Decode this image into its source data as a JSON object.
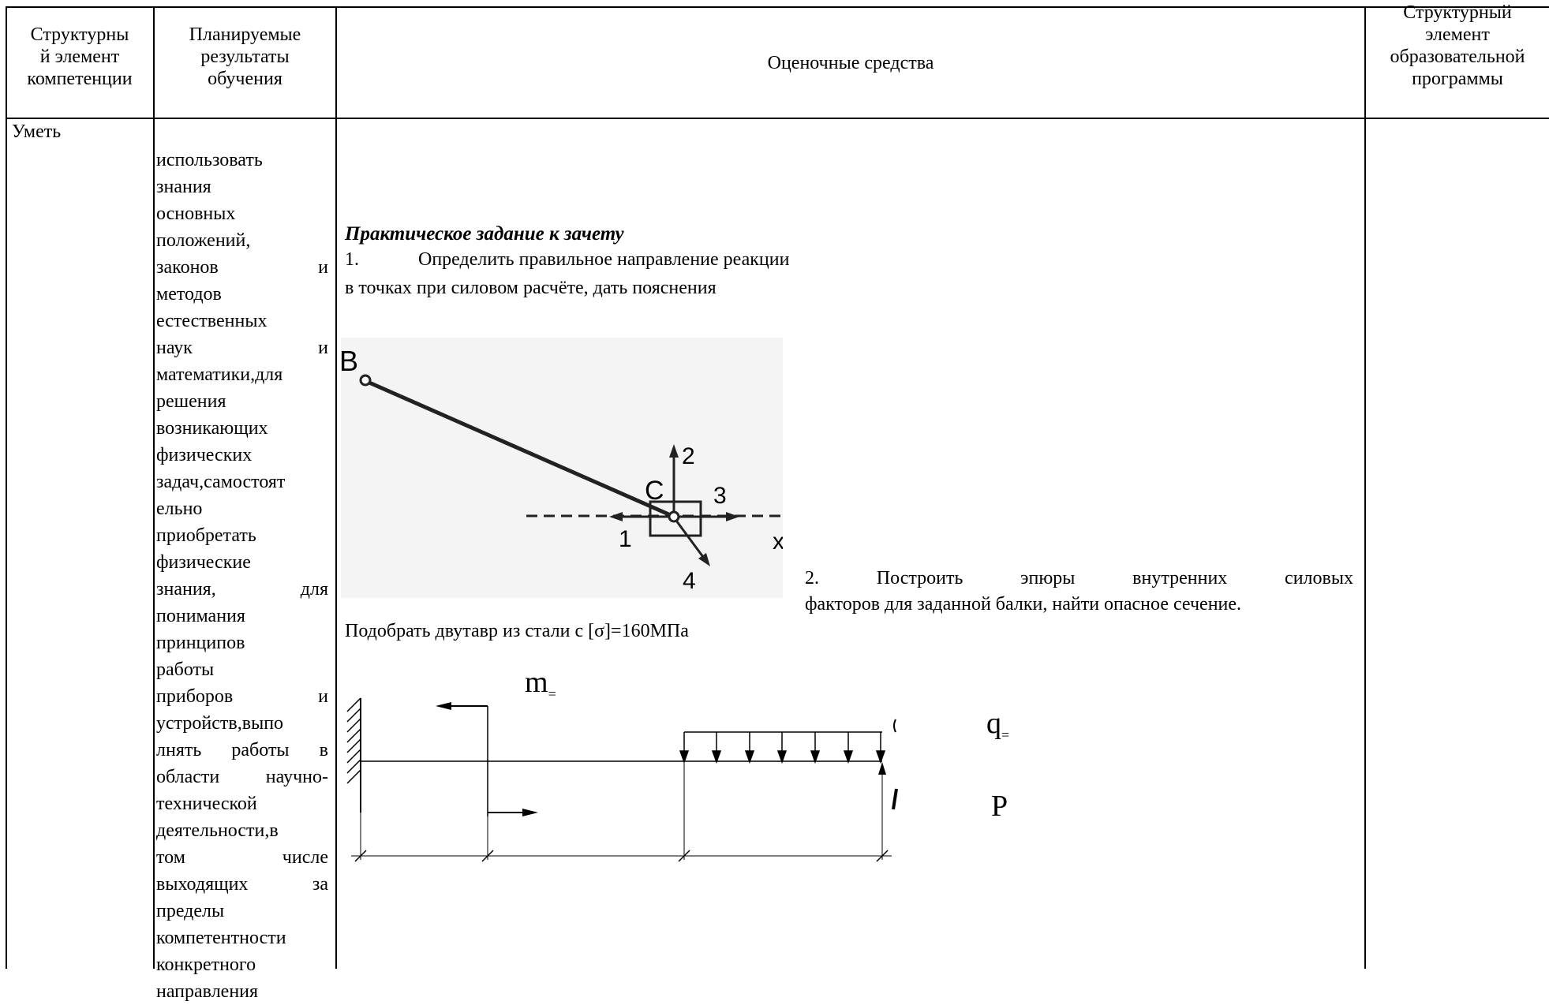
{
  "headers": {
    "col1": [
      "Структурны",
      "й элемент",
      "компетенции"
    ],
    "col2": [
      "Планируемые",
      "результаты",
      "обучения"
    ],
    "col3": "Оценочные средства",
    "col4": [
      "Структурный",
      "элемент",
      "образовательной",
      "программы"
    ]
  },
  "row": {
    "element": "Уметь",
    "results_lines": [
      "использовать",
      "знания",
      "основных",
      "положений,",
      "законов и",
      "методов",
      "естественных",
      "наук и",
      "математики,для",
      "решения",
      "возникающих",
      "физических",
      "задач,самостоят",
      "ельно",
      "приобретать",
      "физические",
      "знания, для",
      "понимания",
      "принципов",
      "работы",
      "приборов и",
      "устройств,выпо",
      "лнять работы в",
      "области научно-",
      "технической",
      "деятельности,в",
      "том числе",
      "выходящих за",
      "пределы",
      "компетентности",
      "конкретного",
      "направления"
    ],
    "justified_lines": [
      4,
      7,
      16,
      20,
      22,
      23,
      26,
      27
    ],
    "tasks": {
      "title": "Практическое задание к зачету",
      "task1_num": "1.",
      "task1_text_a": "Определить правильное направление реакции",
      "task1_text_b": "в точках при силовом расчёте, дать пояснения",
      "figure1_labels": {
        "B": "B",
        "C": "C",
        "arrow1": "1",
        "arrow2": "2",
        "arrow3": "3",
        "arrow4": "4",
        "axis": "x"
      },
      "task2_line1": "2.      Построить      эпюры      внутренних      силовых",
      "task2_line2": "факторов для заданной балки, найти опасное сечение.",
      "task2_select": "Подобрать двутавр из стали с [σ]=160МПа",
      "figure2_labels": {
        "m": "m",
        "m_sub": "=",
        "q": "q",
        "q_sub": "=",
        "P": "P"
      }
    }
  }
}
